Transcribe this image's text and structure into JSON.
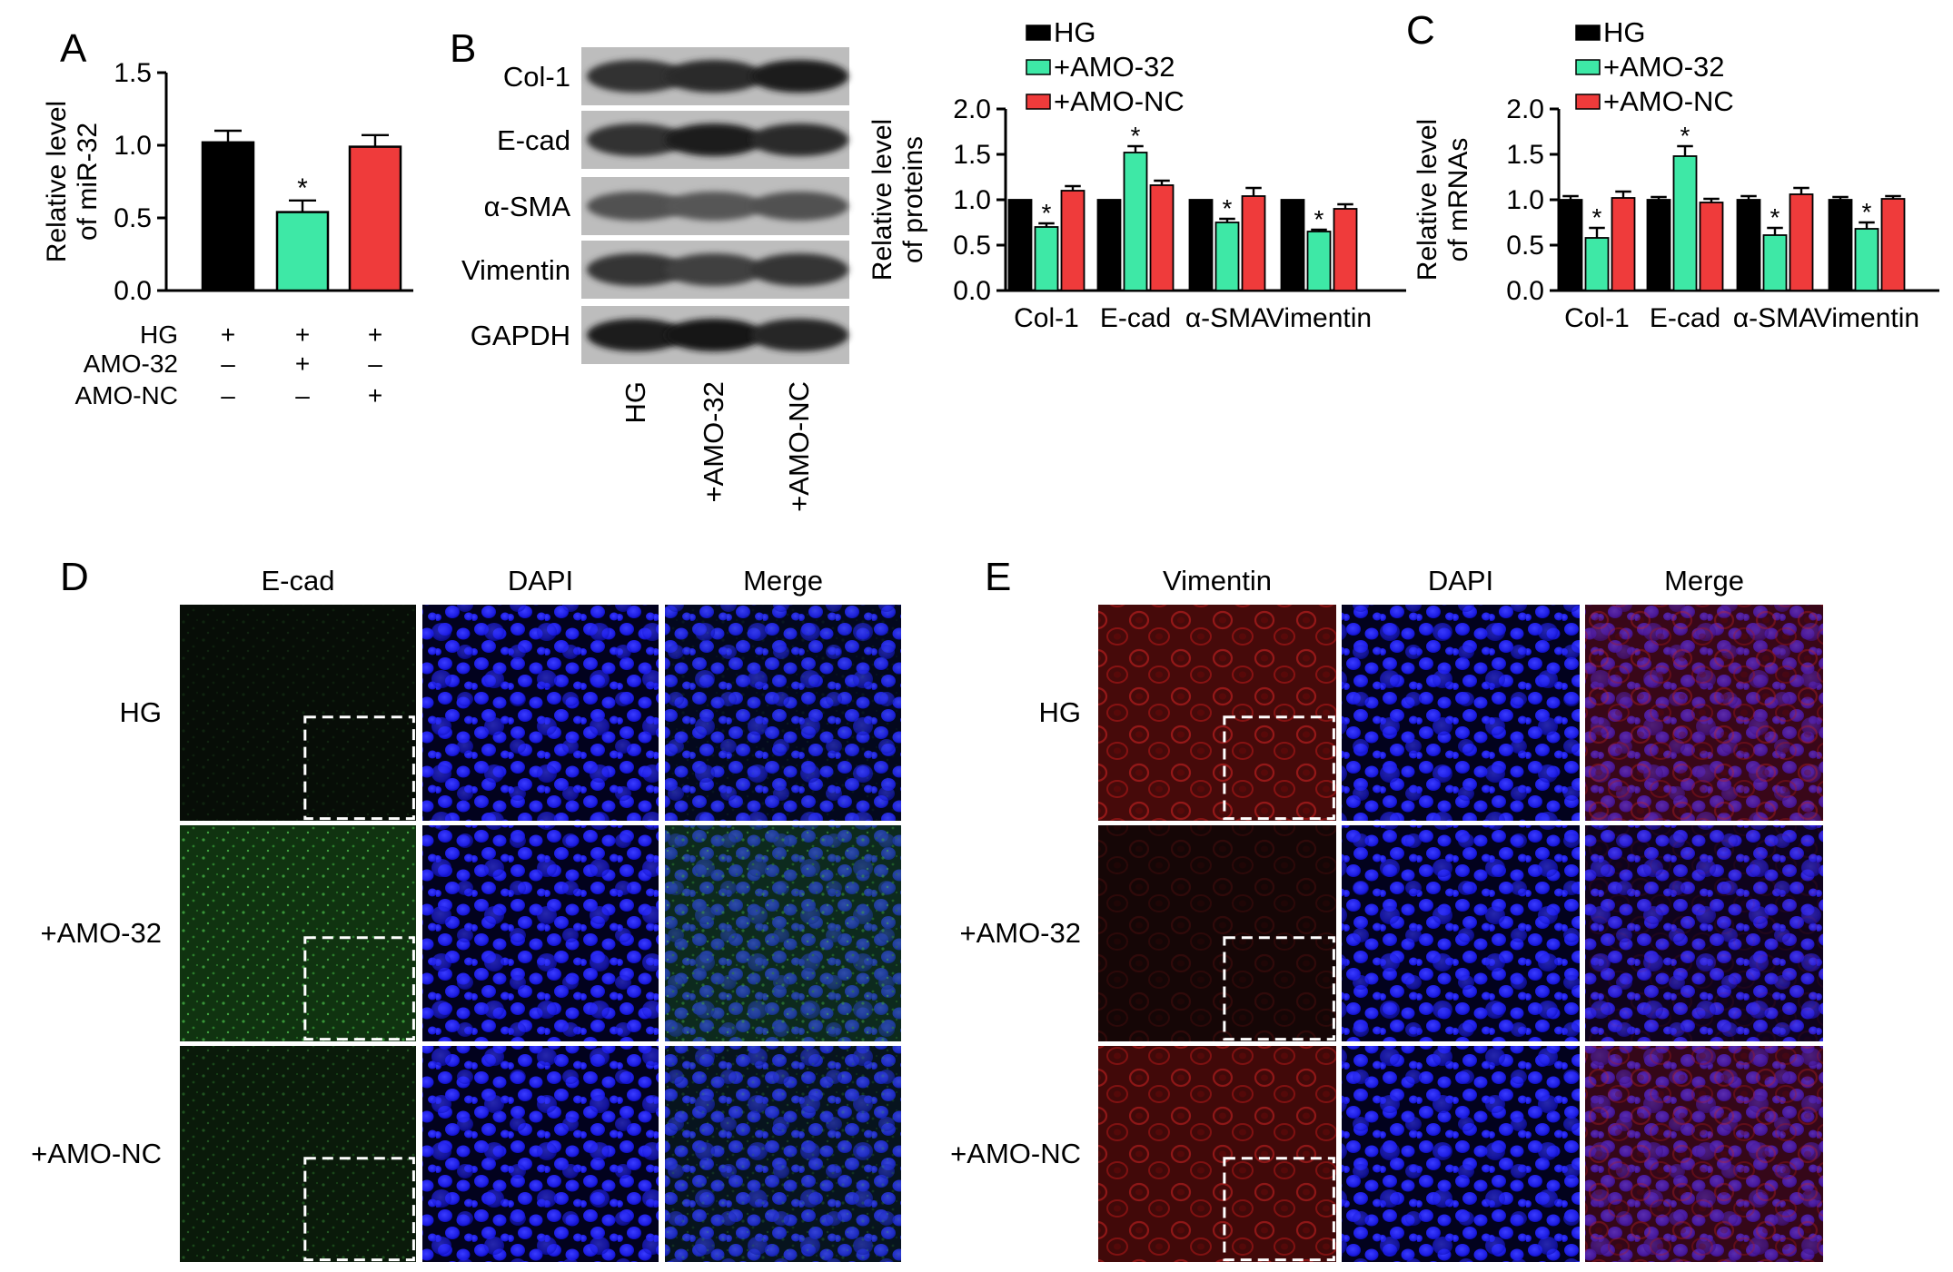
{
  "panel_letters": {
    "a": "A",
    "b": "B",
    "c": "C",
    "d": "D",
    "e": "E"
  },
  "colors": {
    "hg": "#000000",
    "amo32": "#3ee8a6",
    "amonc": "#ef3b3b",
    "axis": "#000000"
  },
  "chart_data": [
    {
      "id": "A",
      "type": "bar",
      "ylabel": [
        "Relative level",
        "of miR-32"
      ],
      "ylim": [
        0,
        1.5
      ],
      "yticks": [
        "0.0",
        "0.5",
        "1.0",
        "1.5"
      ],
      "categories": [
        "HG",
        "AMO-32",
        "AMO-NC"
      ],
      "values": [
        1.02,
        0.54,
        0.99
      ],
      "errors": [
        0.08,
        0.08,
        0.08
      ],
      "significant": [
        false,
        true,
        false
      ],
      "sig_mark": "*",
      "treatment_table": {
        "rows": [
          "HG",
          "AMO-32",
          "AMO-NC"
        ],
        "cells": [
          [
            "+",
            "+",
            "+"
          ],
          [
            "–",
            "+",
            "–"
          ],
          [
            "–",
            "–",
            "+"
          ]
        ]
      }
    },
    {
      "id": "B",
      "type": "bar",
      "ylabel": [
        "Relative level",
        "of proteins"
      ],
      "ylim": [
        0,
        2.0
      ],
      "yticks": [
        "0.0",
        "0.5",
        "1.0",
        "1.5",
        "2.0"
      ],
      "categories": [
        "Col-1",
        "E-cad",
        "α-SMA",
        "Vimentin"
      ],
      "series": [
        {
          "name": "HG",
          "values": [
            1.0,
            1.0,
            1.0,
            1.0
          ],
          "errors": [
            0,
            0,
            0,
            0
          ],
          "sig": [
            false,
            false,
            false,
            false
          ]
        },
        {
          "name": "+AMO-32",
          "values": [
            0.7,
            1.52,
            0.75,
            0.65
          ],
          "errors": [
            0.04,
            0.07,
            0.04,
            0.02
          ],
          "sig": [
            true,
            true,
            true,
            true
          ]
        },
        {
          "name": "+AMO-NC",
          "values": [
            1.1,
            1.16,
            1.04,
            0.9
          ],
          "errors": [
            0.05,
            0.05,
            0.09,
            0.05
          ],
          "sig": [
            false,
            false,
            false,
            false
          ]
        }
      ],
      "legend_position": "top-right"
    },
    {
      "id": "C",
      "type": "bar",
      "ylabel": [
        "Relative level",
        "of mRNAs"
      ],
      "ylim": [
        0,
        2.0
      ],
      "yticks": [
        "0.0",
        "0.5",
        "1.0",
        "1.5",
        "2.0"
      ],
      "categories": [
        "Col-1",
        "E-cad",
        "α-SMA",
        "Vimentin"
      ],
      "series": [
        {
          "name": "HG",
          "values": [
            1.0,
            1.0,
            1.0,
            1.0
          ],
          "errors": [
            0.04,
            0.03,
            0.04,
            0.03
          ],
          "sig": [
            false,
            false,
            false,
            false
          ]
        },
        {
          "name": "+AMO-32",
          "values": [
            0.58,
            1.48,
            0.61,
            0.68
          ],
          "errors": [
            0.11,
            0.11,
            0.08,
            0.07
          ],
          "sig": [
            true,
            true,
            true,
            true
          ]
        },
        {
          "name": "+AMO-NC",
          "values": [
            1.02,
            0.97,
            1.06,
            1.01
          ],
          "errors": [
            0.07,
            0.04,
            0.07,
            0.03
          ],
          "sig": [
            false,
            false,
            false,
            false
          ]
        }
      ],
      "legend_position": "top-left"
    }
  ],
  "western_blot": {
    "rows": [
      "Col-1",
      "E-cad",
      "α-SMA",
      "Vimentin",
      "GAPDH"
    ],
    "lanes": [
      "HG",
      "+AMO-32",
      "+AMO-NC"
    ]
  },
  "panel_d": {
    "columns": [
      "E-cad",
      "DAPI",
      "Merge"
    ],
    "rows": [
      "HG",
      "+AMO-32",
      "+AMO-NC"
    ],
    "stain_color": "#1f6a1f",
    "intensity": [
      0.15,
      0.85,
      0.4
    ]
  },
  "panel_e": {
    "columns": [
      "Vimentin",
      "DAPI",
      "Merge"
    ],
    "rows": [
      "HG",
      "+AMO-32",
      "+AMO-NC"
    ],
    "stain_color": "#9a1212",
    "intensity": [
      0.8,
      0.2,
      0.75
    ]
  }
}
